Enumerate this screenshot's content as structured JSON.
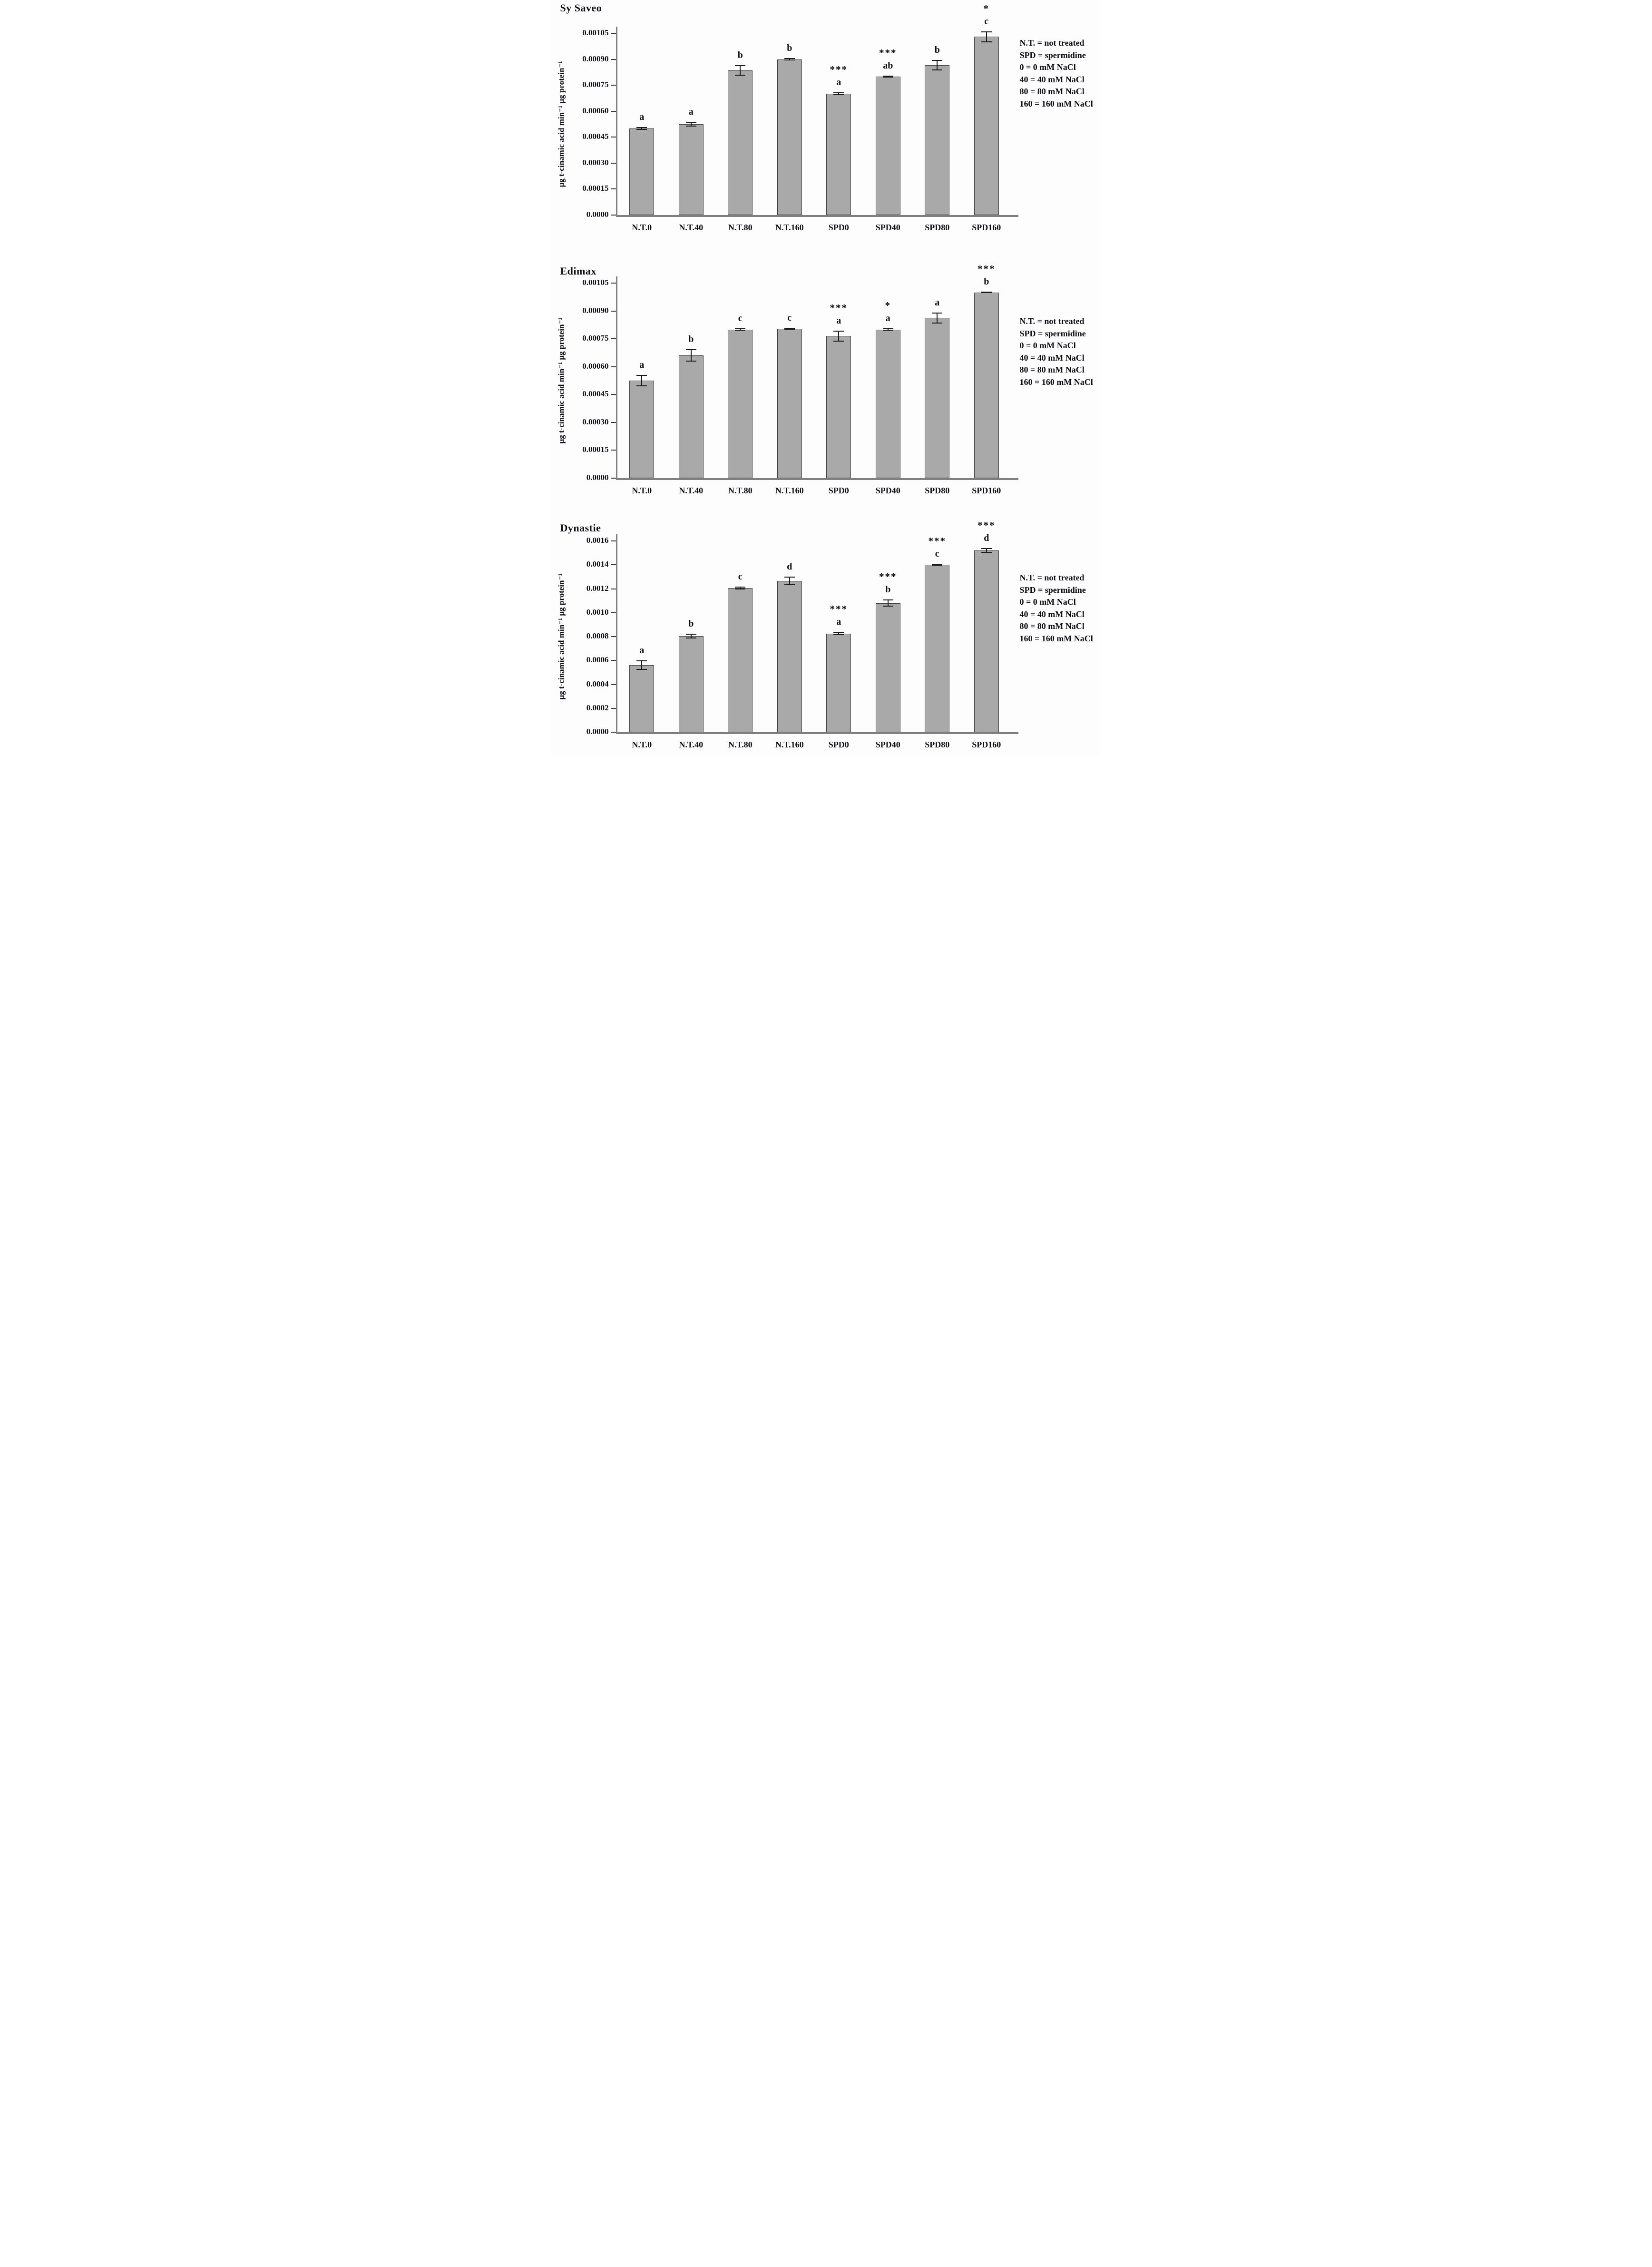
{
  "figure": {
    "description": "Three stacked bar charts of PAL activity in three pepper cultivars under NaCl and spermidine treatments",
    "background": "#fdfdfd"
  },
  "colors": {
    "bar_fill": "#a9a9a9",
    "bar_border": "#3f3f3f",
    "axis": "#7f7f7f",
    "tick": "#3a3a3a",
    "error_bar": "#1a1a1a",
    "text": "#0d0d14"
  },
  "legend": {
    "lines": [
      "N.T. = not treated",
      "SPD = spermidine",
      "0 = 0 mM NaCl",
      "40 = 40 mM NaCl",
      "80 = 80 mM NaCl",
      "160 = 160 mM NaCl"
    ]
  },
  "chart_data": [
    {
      "type": "bar",
      "title": "Sy Saveo",
      "ylabel": "µg t-cinamic acid min⁻¹ µg protein⁻¹",
      "xlabel": "",
      "categories": [
        "N.T.0",
        "N.T.40",
        "N.T.80",
        "N.T.160",
        "SPD0",
        "SPD40",
        "SPD80",
        "SPD160"
      ],
      "values": [
        0.0005,
        0.000525,
        0.000835,
        0.0009,
        0.0007,
        0.0008,
        0.000865,
        0.00103
      ],
      "errors": [
        8e-06,
        1.5e-05,
        3e-05,
        7e-06,
        8e-06,
        6e-06,
        3e-05,
        3.2e-05
      ],
      "letters": [
        "a",
        "a",
        "b",
        "b",
        "a",
        "ab",
        "b",
        "c"
      ],
      "asterisks": [
        "",
        "",
        "",
        "",
        "***",
        "***",
        "",
        "*"
      ],
      "ylim": [
        0,
        0.00105
      ],
      "ytick_step": 0.00015,
      "ytick_labels": [
        "0.0000",
        "0.00015",
        "0.00030",
        "0.00045",
        "0.00060",
        "0.00075",
        "0.00090",
        "0.00105"
      ],
      "grid": false,
      "legend_position": "right"
    },
    {
      "type": "bar",
      "title": "Edimax",
      "ylabel": "µg t-cinamic acid min⁻¹ µg protein⁻¹",
      "xlabel": "",
      "categories": [
        "N.T.0",
        "N.T.40",
        "N.T.80",
        "N.T.160",
        "SPD0",
        "SPD40",
        "SPD80",
        "SPD160"
      ],
      "values": [
        0.000525,
        0.00066,
        0.0008,
        0.000805,
        0.000765,
        0.0008,
        0.000862,
        0.001
      ],
      "errors": [
        3e-05,
        3.3e-05,
        6e-06,
        5e-06,
        3e-05,
        6e-06,
        3e-05,
        4e-06
      ],
      "letters": [
        "a",
        "b",
        "c",
        "c",
        "a",
        "a",
        "a",
        "b"
      ],
      "asterisks": [
        "",
        "",
        "",
        "",
        "***",
        "*",
        "",
        "***"
      ],
      "ylim": [
        0,
        0.00105
      ],
      "ytick_step": 0.00015,
      "ytick_labels": [
        "0.0000",
        "0.00015",
        "0.00030",
        "0.00045",
        "0.00060",
        "0.00075",
        "0.00090",
        "0.00105"
      ],
      "grid": false,
      "legend_position": "right"
    },
    {
      "type": "bar",
      "title": "Dynastie",
      "ylabel": "µg t-cinamic acid min⁻¹ µg protein⁻¹",
      "xlabel": "",
      "categories": [
        "N.T.0",
        "N.T.40",
        "N.T.80",
        "N.T.160",
        "SPD0",
        "SPD40",
        "SPD80",
        "SPD160"
      ],
      "values": [
        0.00056,
        0.000805,
        0.001205,
        0.001265,
        0.000825,
        0.00108,
        0.0014,
        0.00152
      ],
      "errors": [
        4e-05,
        2e-05,
        1.2e-05,
        3.5e-05,
        1.5e-05,
        3e-05,
        8e-06,
        2e-05
      ],
      "letters": [
        "a",
        "b",
        "c",
        "d",
        "a",
        "b",
        "c",
        "d"
      ],
      "asterisks": [
        "",
        "",
        "",
        "",
        "***",
        "***",
        "***",
        "***"
      ],
      "ylim": [
        0,
        0.0016
      ],
      "ytick_step": 0.0002,
      "ytick_labels": [
        "0.0000",
        "0.0002",
        "0.0004",
        "0.0006",
        "0.0008",
        "0.0010",
        "0.0012",
        "0.0014",
        "0.0016"
      ],
      "grid": false,
      "legend_position": "right"
    }
  ]
}
